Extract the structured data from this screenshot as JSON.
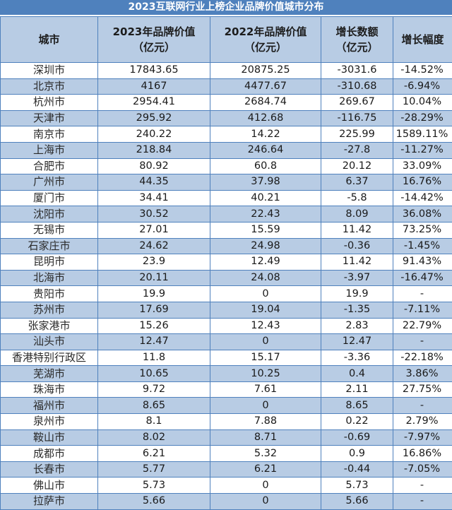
{
  "title": "2023互联网行业上榜企业品牌价值城市分布",
  "header": {
    "city": "城市",
    "value_2023": [
      "2023年品牌价值",
      "（亿元）"
    ],
    "value_2022": [
      "2022年品牌价值",
      "（亿元）"
    ],
    "growth_amount": [
      "增长数额",
      "（亿元）"
    ],
    "growth_rate": "增长幅度"
  },
  "colors": {
    "title_bg": "#4f81bd",
    "header_bg": "#b8cce4",
    "band_bg": "#b8cce4",
    "border": "#4f81bd"
  },
  "rows": [
    {
      "city": "深圳市",
      "v2023": "17843.65",
      "v2022": "20875.25",
      "diff": "-3031.6",
      "pct": "-14.52%"
    },
    {
      "city": "北京市",
      "v2023": "4167",
      "v2022": "4477.67",
      "diff": "-310.68",
      "pct": "-6.94%"
    },
    {
      "city": "杭州市",
      "v2023": "2954.41",
      "v2022": "2684.74",
      "diff": "269.67",
      "pct": "10.04%"
    },
    {
      "city": "天津市",
      "v2023": "295.92",
      "v2022": "412.68",
      "diff": "-116.75",
      "pct": "-28.29%"
    },
    {
      "city": "南京市",
      "v2023": "240.22",
      "v2022": "14.22",
      "diff": "225.99",
      "pct": "1589.11%"
    },
    {
      "city": "上海市",
      "v2023": "218.84",
      "v2022": "246.64",
      "diff": "-27.8",
      "pct": "-11.27%"
    },
    {
      "city": "合肥市",
      "v2023": "80.92",
      "v2022": "60.8",
      "diff": "20.12",
      "pct": "33.09%"
    },
    {
      "city": "广州市",
      "v2023": "44.35",
      "v2022": "37.98",
      "diff": "6.37",
      "pct": "16.76%"
    },
    {
      "city": "厦门市",
      "v2023": "34.41",
      "v2022": "40.21",
      "diff": "-5.8",
      "pct": "-14.42%"
    },
    {
      "city": "沈阳市",
      "v2023": "30.52",
      "v2022": "22.43",
      "diff": "8.09",
      "pct": "36.08%"
    },
    {
      "city": "无锡市",
      "v2023": "27.01",
      "v2022": "15.59",
      "diff": "11.42",
      "pct": "73.25%"
    },
    {
      "city": "石家庄市",
      "v2023": "24.62",
      "v2022": "24.98",
      "diff": "-0.36",
      "pct": "-1.45%"
    },
    {
      "city": "昆明市",
      "v2023": "23.9",
      "v2022": "12.49",
      "diff": "11.42",
      "pct": "91.43%"
    },
    {
      "city": "北海市",
      "v2023": "20.11",
      "v2022": "24.08",
      "diff": "-3.97",
      "pct": "-16.47%"
    },
    {
      "city": "贵阳市",
      "v2023": "19.9",
      "v2022": "0",
      "diff": "19.9",
      "pct": "-"
    },
    {
      "city": "苏州市",
      "v2023": "17.69",
      "v2022": "19.04",
      "diff": "-1.35",
      "pct": "-7.11%"
    },
    {
      "city": "张家港市",
      "v2023": "15.26",
      "v2022": "12.43",
      "diff": "2.83",
      "pct": "22.79%"
    },
    {
      "city": "汕头市",
      "v2023": "12.47",
      "v2022": "0",
      "diff": "12.47",
      "pct": "-"
    },
    {
      "city": "香港特别行政区",
      "v2023": "11.8",
      "v2022": "15.17",
      "diff": "-3.36",
      "pct": "-22.18%"
    },
    {
      "city": "芜湖市",
      "v2023": "10.65",
      "v2022": "10.25",
      "diff": "0.4",
      "pct": "3.86%"
    },
    {
      "city": "珠海市",
      "v2023": "9.72",
      "v2022": "7.61",
      "diff": "2.11",
      "pct": "27.75%"
    },
    {
      "city": "福州市",
      "v2023": "8.65",
      "v2022": "0",
      "diff": "8.65",
      "pct": "-"
    },
    {
      "city": "泉州市",
      "v2023": "8.1",
      "v2022": "7.88",
      "diff": "0.22",
      "pct": "2.79%"
    },
    {
      "city": "鞍山市",
      "v2023": "8.02",
      "v2022": "8.71",
      "diff": "-0.69",
      "pct": "-7.97%"
    },
    {
      "city": "成都市",
      "v2023": "6.21",
      "v2022": "5.32",
      "diff": "0.9",
      "pct": "16.86%"
    },
    {
      "city": "长春市",
      "v2023": "5.77",
      "v2022": "6.21",
      "diff": "-0.44",
      "pct": "-7.05%"
    },
    {
      "city": "佛山市",
      "v2023": "5.73",
      "v2022": "0",
      "diff": "5.73",
      "pct": "-"
    },
    {
      "city": "拉萨市",
      "v2023": "5.66",
      "v2022": "0",
      "diff": "5.66",
      "pct": "-"
    }
  ]
}
